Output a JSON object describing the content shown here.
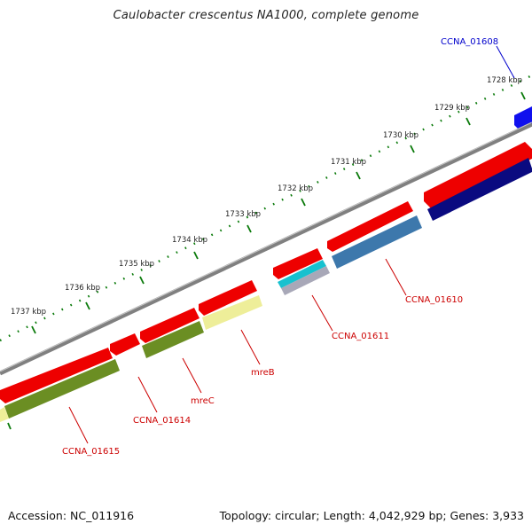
{
  "title": "Caulobacter crescentus NA1000, complete genome",
  "footer": {
    "accession": "Accession: NC_011916",
    "summary": "Topology: circular; Length: 4,042,929 bp; Genes: 3,933"
  },
  "colors": {
    "backbone": "#808080",
    "cds_forward": "#ff0000",
    "tick": "#0a7a0a",
    "kbp_label": "#222222",
    "gene_label": "#cc0000",
    "highlight_label": "#0000cc"
  },
  "scale_labels": [
    "1728 kbp",
    "1729 kbp",
    "1730 kbp",
    "1731 kbp",
    "1732 kbp",
    "1733 kbp",
    "1734 kbp",
    "1735 kbp",
    "1736 kbp",
    "1737 kbp"
  ],
  "gene_labels": [
    "CCNA_01608",
    "CCNA_01610",
    "CCNA_01611",
    "mreB",
    "mreC",
    "CCNA_01614",
    "CCNA_01615"
  ]
}
